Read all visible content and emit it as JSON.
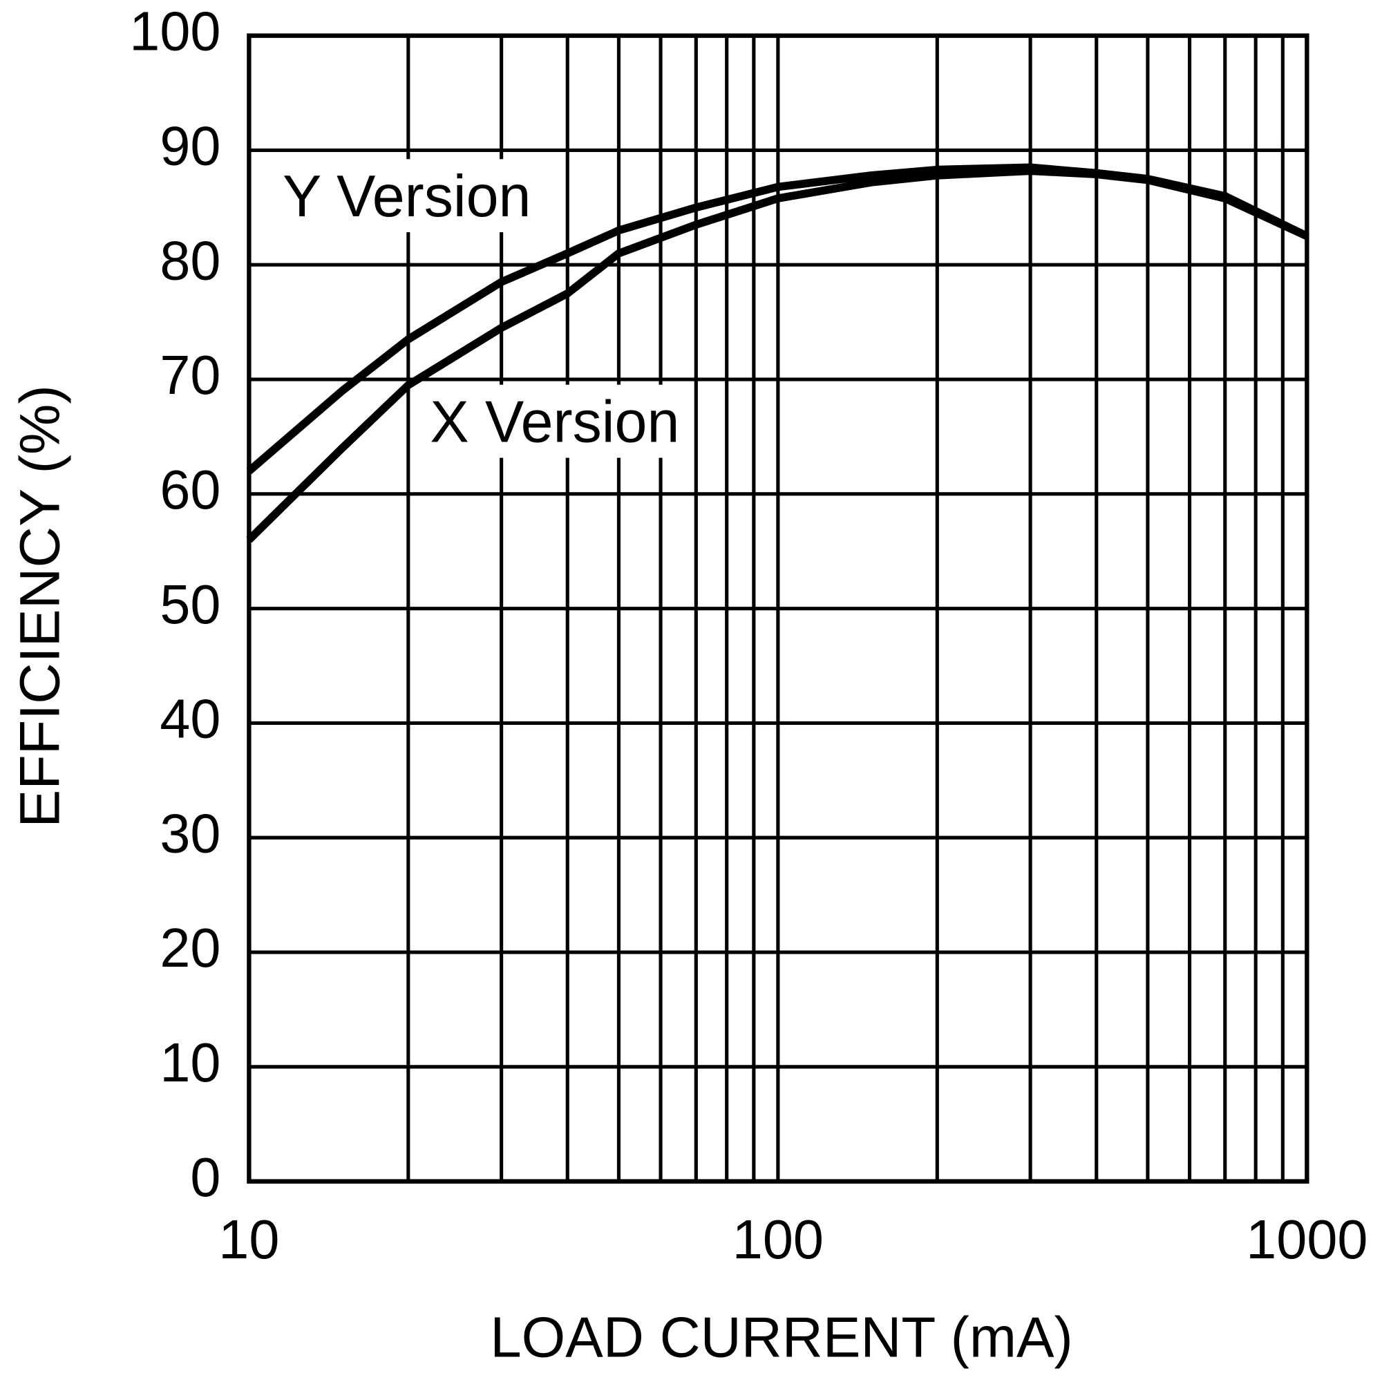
{
  "chart_data": {
    "type": "line",
    "xlabel": "LOAD CURRENT (mA)",
    "ylabel": "EFFICIENCY (%)",
    "x": [
      10,
      15,
      20,
      30,
      40,
      50,
      70,
      100,
      150,
      200,
      300,
      400,
      500,
      700,
      1000
    ],
    "series": [
      {
        "name": "Y Version",
        "color": "#000000",
        "values": [
          62,
          69,
          73.5,
          78.5,
          81,
          83,
          85,
          86.8,
          87.8,
          88.3,
          88.5,
          88,
          87.5,
          86,
          82.5
        ]
      },
      {
        "name": "X Version",
        "color": "#000000",
        "values": [
          56,
          64,
          69.5,
          74.5,
          77.5,
          81,
          83.5,
          85.8,
          87.2,
          87.8,
          88.2,
          87.9,
          87.4,
          85.8,
          82.5
        ]
      }
    ],
    "xscale": "log",
    "xlim": [
      10,
      1000
    ],
    "xticks": [
      10,
      100,
      1000
    ],
    "xminor": [
      20,
      30,
      40,
      50,
      60,
      70,
      80,
      90,
      200,
      300,
      400,
      500,
      600,
      700,
      800,
      900
    ],
    "ylim": [
      0,
      100
    ],
    "yticks": [
      0,
      10,
      20,
      30,
      40,
      50,
      60,
      70,
      80,
      90,
      100
    ],
    "grid": true
  }
}
